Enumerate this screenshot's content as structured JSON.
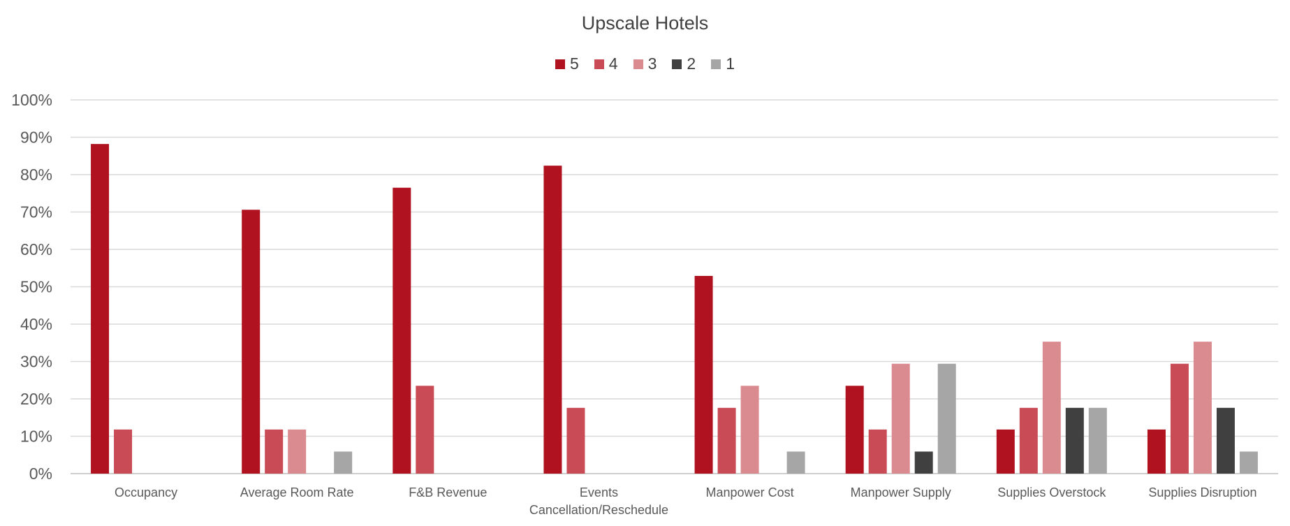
{
  "chart_data": {
    "type": "bar",
    "title": "Upscale Hotels",
    "xlabel": "",
    "ylabel": "",
    "ylim": [
      0,
      100
    ],
    "y_ticks": [
      "0%",
      "10%",
      "20%",
      "30%",
      "40%",
      "50%",
      "60%",
      "70%",
      "80%",
      "90%",
      "100%"
    ],
    "grid": true,
    "legend_position": "top",
    "categories": [
      [
        "Occupancy"
      ],
      [
        "Average Room Rate"
      ],
      [
        "F&B Revenue"
      ],
      [
        "Events",
        "Cancellation/Reschedule"
      ],
      [
        "Manpower Cost"
      ],
      [
        "Manpower Supply"
      ],
      [
        "Supplies Overstock"
      ],
      [
        "Supplies Disruption"
      ]
    ],
    "series": [
      {
        "name": "5",
        "color": "#b0121f",
        "values": [
          88.2,
          70.6,
          76.5,
          82.4,
          52.9,
          23.5,
          11.8,
          11.8
        ]
      },
      {
        "name": "4",
        "color": "#c94b56",
        "values": [
          11.8,
          11.8,
          23.5,
          17.6,
          17.6,
          11.8,
          17.6,
          29.4
        ]
      },
      {
        "name": "3",
        "color": "#d98b90",
        "values": [
          0,
          11.8,
          0,
          0,
          23.5,
          29.4,
          35.3,
          35.3
        ]
      },
      {
        "name": "2",
        "color": "#404040",
        "values": [
          0,
          0,
          0,
          0,
          0,
          5.9,
          17.6,
          17.6
        ]
      },
      {
        "name": "1",
        "color": "#a6a6a6",
        "values": [
          0,
          5.9,
          0,
          0,
          5.9,
          29.4,
          17.6,
          5.9
        ]
      }
    ]
  }
}
